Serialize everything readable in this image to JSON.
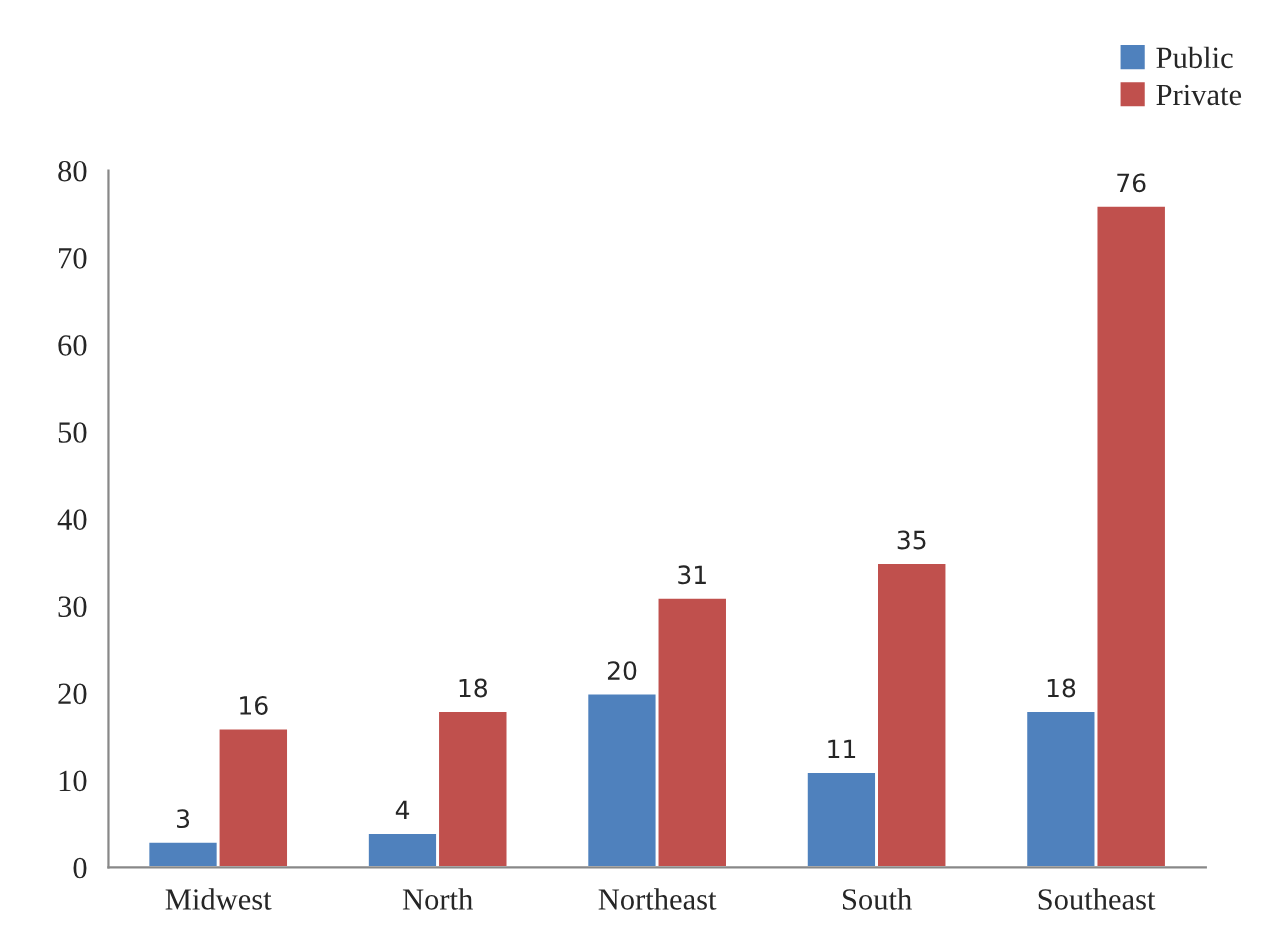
{
  "chart_data": {
    "type": "bar",
    "categories": [
      "Midwest",
      "North",
      "Northeast",
      "South",
      "Southeast"
    ],
    "series": [
      {
        "name": "Public",
        "color": "#4f81bd",
        "values": [
          3,
          4,
          20,
          11,
          18
        ]
      },
      {
        "name": "Private",
        "color": "#c0504d",
        "values": [
          16,
          18,
          31,
          35,
          76
        ]
      }
    ],
    "ylim": [
      0,
      80
    ],
    "yticks": [
      0,
      10,
      20,
      30,
      40,
      50,
      60,
      70,
      80
    ],
    "data_labels": true,
    "grid": false,
    "legend": "top right"
  }
}
